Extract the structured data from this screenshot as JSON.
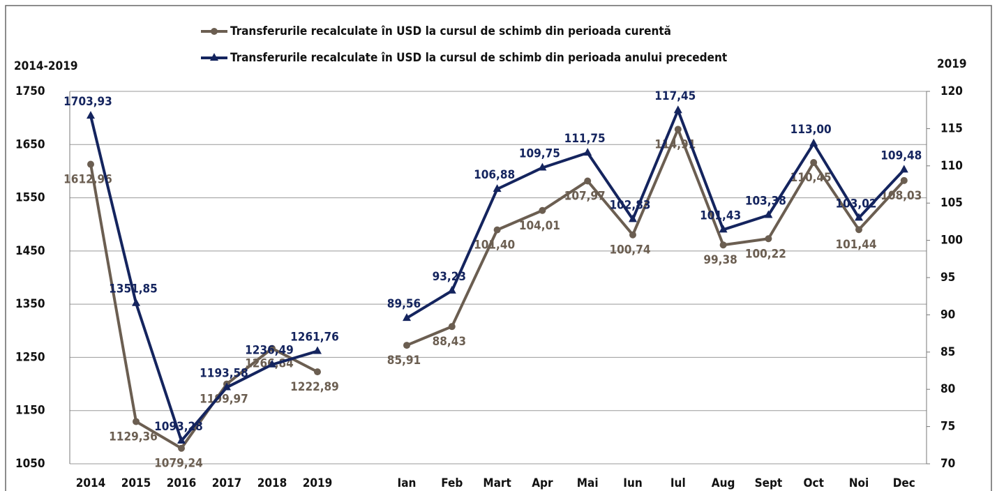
{
  "chart_data": [
    {
      "type": "line",
      "y_label": "2014-2019",
      "categories": [
        "2014",
        "2015",
        "2016",
        "2017",
        "2018",
        "2019"
      ],
      "ylim": [
        1050,
        1750
      ],
      "yticks": [
        1050,
        1150,
        1250,
        1350,
        1450,
        1550,
        1650,
        1750
      ],
      "grid": true,
      "series": [
        {
          "name": "Transferurile recalculate în USD la cursul de schimb din perioada curentă",
          "color": "#6b5e51",
          "marker": "circle",
          "values": [
            1612.96,
            1129.36,
            1079.24,
            1199.97,
            1266.84,
            1222.89
          ],
          "value_labels": [
            "1612,96",
            "1129,36",
            "1079,24",
            "1199,97",
            "1266,84",
            "1222,89"
          ]
        },
        {
          "name": "Transferurile recalculate în USD la cursul de schimb din perioada anului precedent",
          "color": "#14245e",
          "marker": "triangle",
          "values": [
            1703.93,
            1351.85,
            1093.28,
            1193.58,
            1236.49,
            1261.76
          ],
          "value_labels": [
            "1703,93",
            "1351,85",
            "1093,28",
            "1193,58",
            "1236,49",
            "1261,76"
          ]
        }
      ]
    },
    {
      "type": "line",
      "y2_label": "2019",
      "categories": [
        "Ian",
        "Feb",
        "Mart",
        "Apr",
        "Mai",
        "Iun",
        "Iul",
        "Aug",
        "Sept",
        "Oct",
        "Noi",
        "Dec"
      ],
      "y2lim": [
        70,
        120
      ],
      "y2ticks": [
        70,
        75,
        80,
        85,
        90,
        95,
        100,
        105,
        110,
        115,
        120
      ],
      "series": [
        {
          "color": "#6b5e51",
          "marker": "circle",
          "axis": "y2",
          "values": [
            85.91,
            88.43,
            101.4,
            104.01,
            107.97,
            100.74,
            114.91,
            99.38,
            100.22,
            110.45,
            101.44,
            108.03
          ],
          "value_labels": [
            "85,91",
            "88,43",
            "101,40",
            "104,01",
            "107,97",
            "100,74",
            "114,91",
            "99,38",
            "100,22",
            "110,45",
            "101,44",
            "108,03"
          ]
        },
        {
          "color": "#14245e",
          "marker": "triangle",
          "axis": "y2",
          "values": [
            89.56,
            93.23,
            106.88,
            109.75,
            111.75,
            102.83,
            117.45,
            101.43,
            103.38,
            113.0,
            103.02,
            109.48
          ],
          "value_labels": [
            "89,56",
            "93,23",
            "106,88",
            "109,75",
            "111,75",
            "102,83",
            "117,45",
            "101,43",
            "103,38",
            "113,00",
            "103,02",
            "109,48"
          ]
        }
      ]
    }
  ]
}
